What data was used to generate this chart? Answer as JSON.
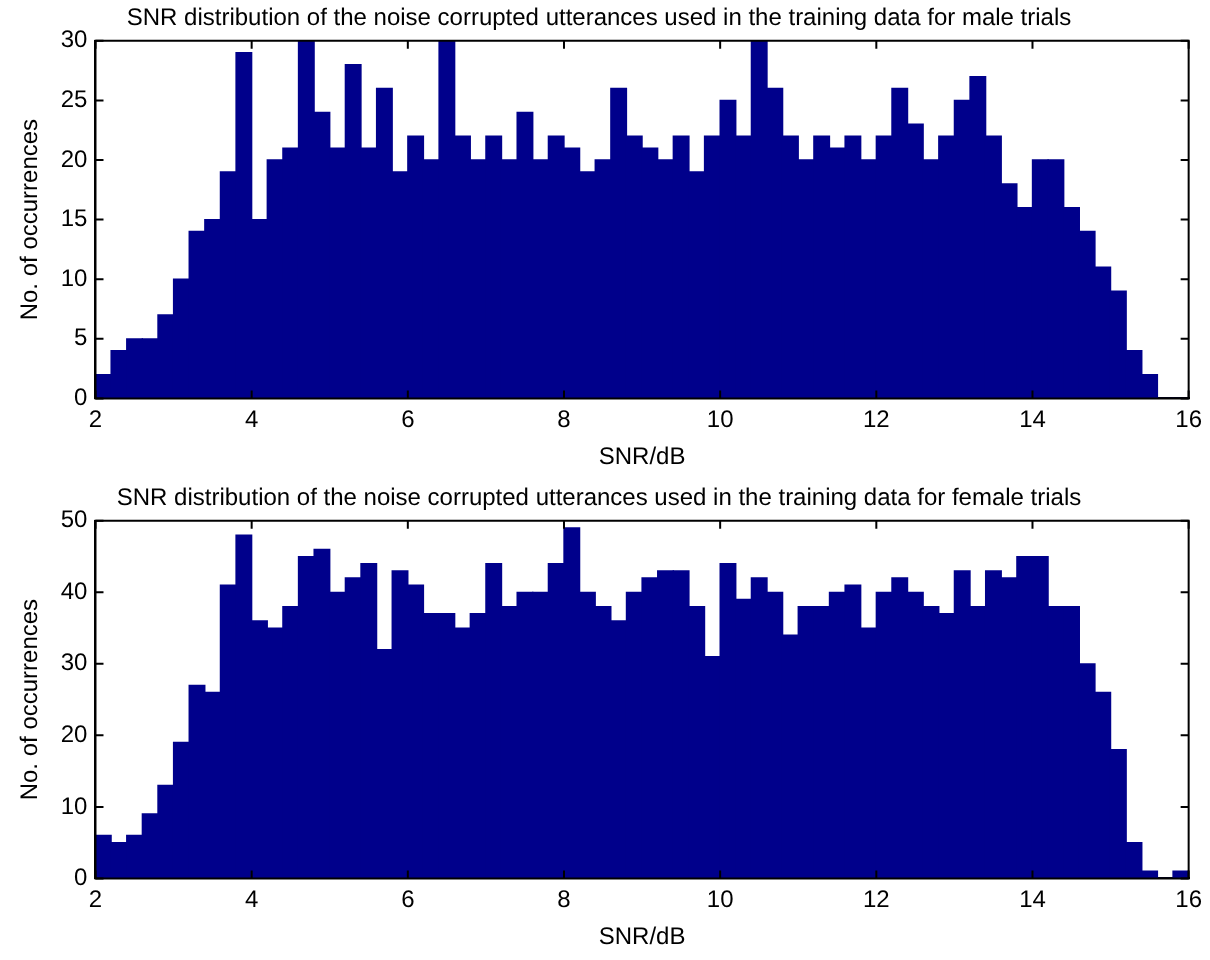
{
  "chart_data": [
    {
      "type": "histogram",
      "title": "SNR distribution of the noise corrupted utterances used in the training data for male trials",
      "xlabel": "SNR/dB",
      "ylabel": "No. of occurrences",
      "color": "#00008b",
      "grid": false,
      "legend": false,
      "bins": [
        2,
        2.2,
        2.4,
        2.6,
        2.8,
        3,
        3.2,
        3.4,
        3.6,
        3.8,
        4,
        4.2,
        4.4,
        4.6,
        4.8,
        5,
        5.2,
        5.4,
        5.6,
        5.8,
        6,
        6.2,
        6.4,
        6.6,
        6.8,
        7,
        7.2,
        7.4,
        7.6,
        7.8,
        8,
        8.2,
        8.4,
        8.6,
        8.8,
        9,
        9.2,
        9.4,
        9.6,
        9.8,
        10,
        10.2,
        10.4,
        10.6,
        10.8,
        11,
        11.2,
        11.4,
        11.6,
        11.8,
        12,
        12.2,
        12.4,
        12.6,
        12.8,
        13,
        13.2,
        13.4,
        13.6,
        13.8,
        14,
        14.2,
        14.4,
        14.6,
        14.8,
        15,
        15.2,
        15.4,
        15.6,
        15.8,
        16
      ],
      "values": [
        2,
        4,
        5,
        5,
        7,
        10,
        14,
        15,
        19,
        29,
        15,
        20,
        21,
        30,
        24,
        21,
        28,
        21,
        26,
        19,
        22,
        20,
        30,
        22,
        20,
        22,
        20,
        24,
        20,
        22,
        21,
        19,
        20,
        26,
        22,
        21,
        20,
        22,
        19,
        22,
        25,
        22,
        30,
        26,
        22,
        20,
        22,
        21,
        22,
        20,
        22,
        26,
        23,
        20,
        22,
        25,
        27,
        22,
        18,
        16,
        20,
        20,
        16,
        14,
        11,
        9,
        4,
        2,
        0,
        0
      ],
      "xlim": [
        2,
        16
      ],
      "xticks": [
        2,
        4,
        6,
        8,
        10,
        12,
        14,
        16
      ],
      "ylim": [
        0,
        30
      ],
      "yticks": [
        0,
        5,
        10,
        15,
        20,
        25,
        30
      ]
    },
    {
      "type": "histogram",
      "title": "SNR distribution of the noise corrupted utterances used in the training data for female trials",
      "xlabel": "SNR/dB",
      "ylabel": "No. of occurrences",
      "color": "#00008b",
      "grid": false,
      "legend": false,
      "bins": [
        2,
        2.2,
        2.4,
        2.6,
        2.8,
        3,
        3.2,
        3.4,
        3.6,
        3.8,
        4,
        4.2,
        4.4,
        4.6,
        4.8,
        5,
        5.2,
        5.4,
        5.6,
        5.8,
        6,
        6.2,
        6.4,
        6.6,
        6.8,
        7,
        7.2,
        7.4,
        7.6,
        7.8,
        8,
        8.2,
        8.4,
        8.6,
        8.8,
        9,
        9.2,
        9.4,
        9.6,
        9.8,
        10,
        10.2,
        10.4,
        10.6,
        10.8,
        11,
        11.2,
        11.4,
        11.6,
        11.8,
        12,
        12.2,
        12.4,
        12.6,
        12.8,
        13,
        13.2,
        13.4,
        13.6,
        13.8,
        14,
        14.2,
        14.4,
        14.6,
        14.8,
        15,
        15.2,
        15.4,
        15.6,
        15.8,
        16
      ],
      "values": [
        6,
        5,
        6,
        9,
        13,
        19,
        27,
        26,
        41,
        48,
        36,
        35,
        38,
        45,
        46,
        40,
        42,
        44,
        32,
        43,
        41,
        37,
        37,
        35,
        37,
        44,
        38,
        40,
        40,
        44,
        49,
        40,
        38,
        36,
        40,
        42,
        43,
        43,
        38,
        31,
        44,
        39,
        42,
        40,
        34,
        38,
        38,
        40,
        41,
        35,
        40,
        42,
        40,
        38,
        37,
        43,
        38,
        43,
        42,
        45,
        45,
        38,
        38,
        30,
        26,
        18,
        5,
        1,
        0,
        1
      ],
      "xlim": [
        2,
        16
      ],
      "xticks": [
        2,
        4,
        6,
        8,
        10,
        12,
        14,
        16
      ],
      "ylim": [
        0,
        50
      ],
      "yticks": [
        0,
        10,
        20,
        30,
        40,
        50
      ]
    }
  ]
}
